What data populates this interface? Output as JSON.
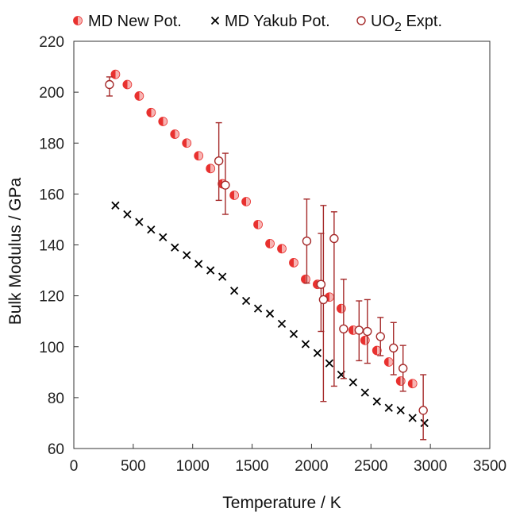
{
  "chart_data": {
    "type": "scatter",
    "xlabel": "Temperature / K",
    "ylabel": "Bulk Modulus / GPa",
    "xlim": [
      0,
      3500
    ],
    "ylim": [
      60,
      220
    ],
    "xticks": [
      0,
      500,
      1000,
      1500,
      2000,
      2500,
      3000,
      3500
    ],
    "yticks": [
      60,
      80,
      100,
      120,
      140,
      160,
      180,
      200,
      220
    ],
    "legend_position": "top",
    "colors": {
      "red": "#e8312f",
      "dark_red": "#a52a2a",
      "black": "#000000"
    },
    "series": [
      {
        "name": "MD New Pot.",
        "marker": "half-filled-circle",
        "x": [
          350,
          450,
          550,
          650,
          750,
          850,
          950,
          1050,
          1150,
          1250,
          1350,
          1450,
          1550,
          1650,
          1750,
          1850,
          1950,
          2050,
          2150,
          2250,
          2350,
          2450,
          2550,
          2650,
          2750,
          2850
        ],
        "y": [
          207,
          203,
          198.5,
          192,
          188.5,
          183.5,
          180,
          175,
          170,
          164,
          159.5,
          157,
          148,
          140.5,
          138.5,
          133,
          126.5,
          124.5,
          119.5,
          115,
          106.5,
          102.5,
          98.5,
          94,
          86.5,
          85.5
        ]
      },
      {
        "name": "MD Yakub Pot.",
        "marker": "cross",
        "x": [
          350,
          450,
          550,
          650,
          750,
          850,
          950,
          1050,
          1150,
          1250,
          1350,
          1450,
          1550,
          1650,
          1750,
          1850,
          1950,
          2050,
          2150,
          2250,
          2350,
          2450,
          2550,
          2650,
          2750,
          2850,
          2950
        ],
        "y": [
          155.5,
          152,
          149,
          146,
          143,
          139,
          136,
          132.5,
          130,
          127.5,
          122,
          118,
          115,
          113,
          109,
          105,
          101,
          97.5,
          93.5,
          89,
          86,
          82,
          78.5,
          76,
          75,
          72,
          70
        ]
      },
      {
        "name": "UO2 Expt.",
        "legend_main": "UO",
        "legend_sub": "2",
        "legend_rest": " Expt.",
        "marker": "open-circle",
        "x": [
          300,
          1220,
          1275,
          1960,
          2080,
          2100,
          2190,
          2270,
          2400,
          2470,
          2580,
          2690,
          2770,
          2940
        ],
        "y": [
          203,
          173,
          163.5,
          141.5,
          124.5,
          118.5,
          142.5,
          107,
          106.5,
          106,
          104,
          99.5,
          91.5,
          75
        ],
        "err_low": [
          198.5,
          157.5,
          152,
          125,
          106,
          78.5,
          84.5,
          87.5,
          94.5,
          93.5,
          96.5,
          89,
          82.5,
          63.5
        ],
        "err_high": [
          206,
          188,
          176,
          158,
          144.5,
          155.5,
          153,
          126.5,
          118,
          118.5,
          111.5,
          109.5,
          100.5,
          89
        ]
      }
    ]
  }
}
